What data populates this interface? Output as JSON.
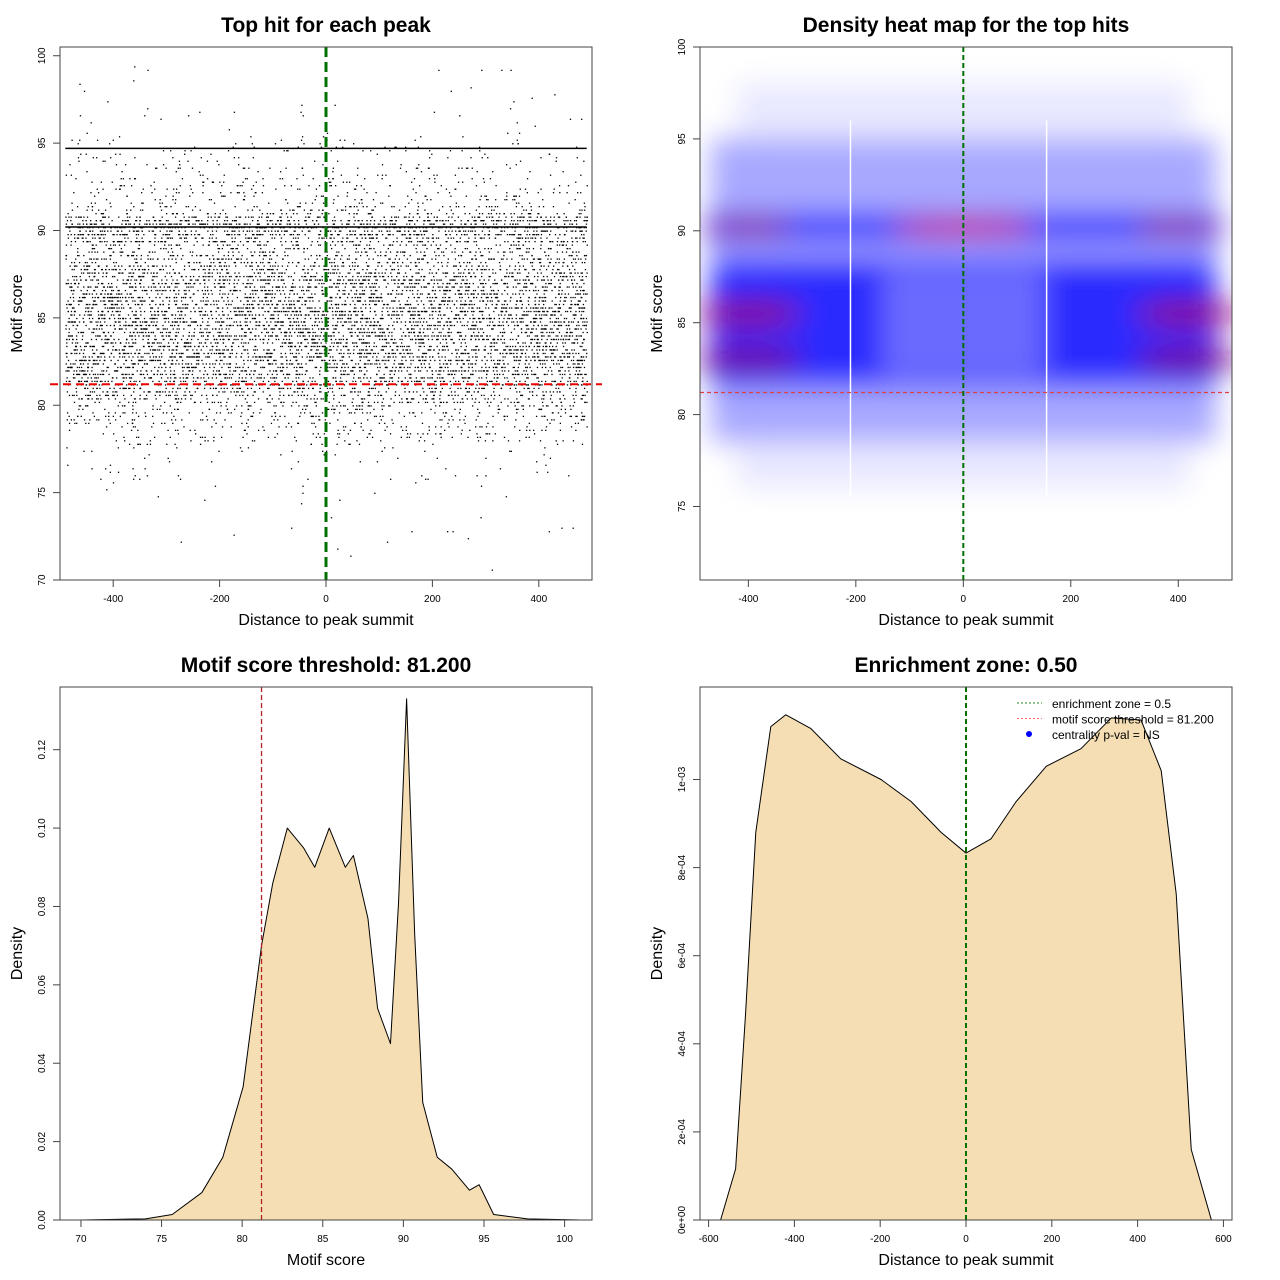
{
  "chart_data": [
    {
      "type": "scatter",
      "title": "Top hit for each peak",
      "xlabel": "Distance to peak summit",
      "ylabel": "Motif score",
      "xlim": [
        -500,
        500
      ],
      "ylim": [
        70,
        100.5
      ],
      "xticks": [
        -400,
        -200,
        0,
        200,
        400
      ],
      "yticks": [
        70,
        75,
        80,
        85,
        90,
        95,
        100
      ],
      "vline": 0,
      "hline": 81.2,
      "x_range_points": [
        -490,
        490
      ],
      "dense_rows": [
        90.2,
        94.7
      ],
      "approx_points": 20000,
      "score_density_ref": "same as Motif score density panel"
    },
    {
      "type": "heatmap",
      "title": "Density heat map for the top hits",
      "xlabel": "Distance to peak summit",
      "ylabel": "Motif score",
      "xlim": [
        -490,
        500
      ],
      "ylim": [
        71,
        100
      ],
      "xticks": [
        -400,
        -200,
        0,
        200,
        400
      ],
      "yticks": [
        75,
        80,
        85,
        90,
        95,
        100
      ],
      "vline": 0,
      "hline": 81.2,
      "hotspots": [
        {
          "x": 0,
          "y": 90.2,
          "level": 1.0
        },
        {
          "x": -400,
          "y": 90.2,
          "level": 0.7
        },
        {
          "x": 400,
          "y": 90.2,
          "level": 0.7
        },
        {
          "x": -400,
          "y": 85.5,
          "level": 0.6
        },
        {
          "x": 420,
          "y": 85.5,
          "level": 0.6
        },
        {
          "x": -400,
          "y": 83,
          "level": 0.5
        },
        {
          "x": 420,
          "y": 83,
          "level": 0.5
        }
      ],
      "colors": [
        "#ffffff",
        "#0000ff",
        "#ff0000"
      ]
    },
    {
      "type": "area",
      "title": "Motif score threshold: 81.200",
      "xlabel": "Motif score",
      "ylabel": "Density",
      "xlim": [
        68.7,
        101.7
      ],
      "ylim": [
        0,
        0.136
      ],
      "xticks": [
        70,
        75,
        80,
        85,
        90,
        95,
        100
      ],
      "yticks": [
        0,
        0.02,
        0.04,
        0.06,
        0.08,
        0.1,
        0.12
      ],
      "ytick_labels": [
        "0.00",
        "0.02",
        "0.04",
        "0.06",
        "0.08",
        "0.10",
        "0.12"
      ],
      "vline": 81.2,
      "fill": "#f5deb3",
      "x": [
        70,
        74,
        75.66,
        77.5,
        78.8,
        80.06,
        81.2,
        81.9,
        82.8,
        83.8,
        84.5,
        85.4,
        86.4,
        86.9,
        87.8,
        88.4,
        89.2,
        89.7,
        90.2,
        90.7,
        91.2,
        92.1,
        93,
        94.1,
        94.7,
        95.6,
        97.7,
        101
      ],
      "y": [
        0,
        0.0003,
        0.0014,
        0.007,
        0.016,
        0.034,
        0.07,
        0.086,
        0.1,
        0.095,
        0.09,
        0.1,
        0.09,
        0.093,
        0.077,
        0.054,
        0.045,
        0.081,
        0.133,
        0.073,
        0.03,
        0.016,
        0.013,
        0.0076,
        0.009,
        0.0014,
        0.0003,
        0
      ]
    },
    {
      "type": "area",
      "title": "Enrichment zone: 0.50",
      "xlabel": "Distance to peak summit",
      "ylabel": "Density",
      "xlim": [
        -620,
        620
      ],
      "ylim": [
        0,
        0.00121
      ],
      "xticks": [
        -600,
        -400,
        -200,
        0,
        200,
        400,
        600
      ],
      "yticks": [
        0,
        0.0002,
        0.0004,
        0.0006,
        0.0008,
        0.001
      ],
      "ytick_labels": [
        "0e+00",
        "2e-04",
        "4e-04",
        "6e-04",
        "8e-04",
        "1e-03"
      ],
      "vline": 0,
      "fill": "#f5deb3",
      "x": [
        -572,
        -537,
        -514,
        -490,
        -455,
        -420,
        -362,
        -292,
        -198,
        -128,
        -58,
        0,
        58,
        117,
        187,
        268,
        339,
        408,
        455,
        490,
        525,
        572
      ],
      "y": [
        0,
        0.000116,
        0.000465,
        0.00088,
        0.00112,
        0.001147,
        0.001116,
        0.001047,
        0.001,
        0.00095,
        0.00088,
        0.000833,
        0.000865,
        0.00095,
        0.00103,
        0.00107,
        0.00114,
        0.001135,
        0.00102,
        0.00074,
        0.00016,
        0
      ],
      "legend": [
        {
          "label": "enrichment zone = 0.5",
          "color": "#228b22",
          "mark": "dotted"
        },
        {
          "label": "motif score threshold = 81.200",
          "color": "#ff6666",
          "mark": "dotted"
        },
        {
          "label": "centrality p-val = NS",
          "color": "#0000ff",
          "mark": "dot"
        }
      ],
      "legend_position": "top-right"
    }
  ]
}
